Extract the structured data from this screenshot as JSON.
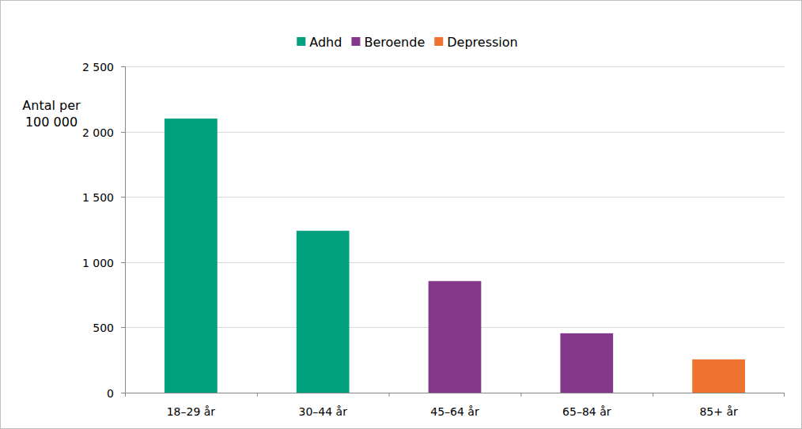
{
  "chart_data": {
    "type": "bar",
    "y_label": "Antal per 100 000",
    "categories": [
      "18–29 år",
      "30–44 år",
      "45–64 år",
      "65–84 år",
      "85+ år"
    ],
    "series": [
      {
        "name": "Adhd",
        "color": "#00a07f",
        "values": [
          2100,
          1240,
          null,
          null,
          null
        ]
      },
      {
        "name": "Beroende",
        "color": "#84388b",
        "values": [
          null,
          null,
          855,
          455,
          null
        ]
      },
      {
        "name": "Depression",
        "color": "#ee7330",
        "values": [
          null,
          null,
          null,
          null,
          255
        ]
      }
    ],
    "ylim": [
      0,
      2500
    ],
    "yticks": [
      0,
      500,
      {
        "value": 1000,
        "label": "1 000"
      },
      {
        "value": 1500,
        "label": "1 500"
      },
      {
        "value": 2000,
        "label": "2 000"
      },
      {
        "value": 2500,
        "label": "2 500"
      }
    ],
    "grid": true,
    "legend": "top"
  }
}
